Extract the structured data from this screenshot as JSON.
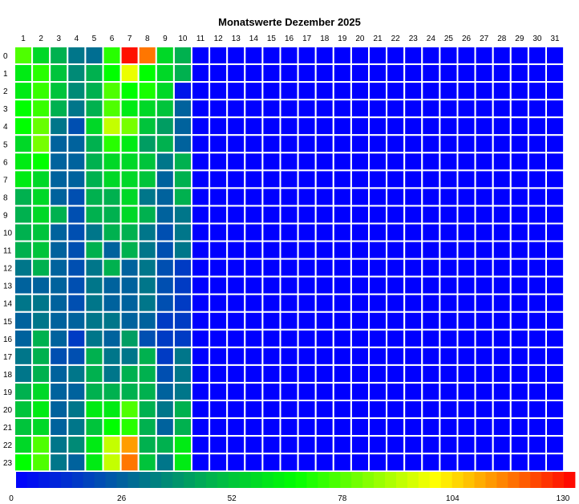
{
  "chart_data": {
    "type": "heatmap",
    "title": "Monatswerte Dezember 2025",
    "x_categories": [
      "1",
      "2",
      "3",
      "4",
      "5",
      "6",
      "7",
      "8",
      "9",
      "10",
      "11",
      "12",
      "13",
      "14",
      "15",
      "16",
      "17",
      "18",
      "19",
      "20",
      "21",
      "22",
      "23",
      "24",
      "25",
      "26",
      "27",
      "28",
      "29",
      "30",
      "31"
    ],
    "y_categories": [
      "0",
      "1",
      "2",
      "3",
      "4",
      "5",
      "6",
      "7",
      "8",
      "9",
      "10",
      "11",
      "12",
      "13",
      "14",
      "15",
      "16",
      "17",
      "18",
      "19",
      "20",
      "21",
      "22",
      "23"
    ],
    "value_range": [
      0,
      130
    ],
    "colorbar_ticks": [
      "0",
      "26",
      "52",
      "78",
      "104",
      "130"
    ],
    "grid": true,
    "colors": {
      "scale": [
        "#0000ff",
        "#008080",
        "#00ff00",
        "#ffff00",
        "#ff0000"
      ],
      "cell_border": "#ffffff"
    },
    "values_first_10_days": [
      [
        75,
        55,
        45,
        30,
        28,
        70,
        128,
        115,
        55,
        45
      ],
      [
        60,
        70,
        50,
        35,
        45,
        65,
        95,
        65,
        55,
        45
      ],
      [
        60,
        72,
        50,
        35,
        45,
        75,
        65,
        68,
        55,
        5
      ],
      [
        65,
        72,
        45,
        30,
        45,
        75,
        60,
        55,
        50,
        25
      ],
      [
        65,
        78,
        30,
        20,
        55,
        90,
        80,
        50,
        40,
        25
      ],
      [
        55,
        80,
        25,
        25,
        45,
        70,
        60,
        40,
        45,
        25
      ],
      [
        60,
        65,
        25,
        25,
        45,
        55,
        55,
        50,
        30,
        45
      ],
      [
        60,
        55,
        25,
        25,
        45,
        55,
        55,
        50,
        25,
        45
      ],
      [
        45,
        55,
        25,
        20,
        45,
        45,
        55,
        30,
        25,
        45
      ],
      [
        45,
        55,
        45,
        20,
        45,
        45,
        55,
        45,
        25,
        30
      ],
      [
        45,
        50,
        25,
        20,
        30,
        45,
        45,
        30,
        20,
        30
      ],
      [
        45,
        50,
        25,
        20,
        45,
        25,
        45,
        30,
        20,
        30
      ],
      [
        30,
        45,
        25,
        20,
        30,
        45,
        25,
        30,
        20,
        15
      ],
      [
        25,
        25,
        25,
        20,
        30,
        25,
        25,
        30,
        20,
        15
      ],
      [
        30,
        30,
        25,
        20,
        30,
        25,
        25,
        30,
        20,
        15
      ],
      [
        25,
        30,
        25,
        25,
        30,
        30,
        25,
        25,
        15,
        15
      ],
      [
        25,
        45,
        25,
        15,
        30,
        25,
        40,
        20,
        15,
        15
      ],
      [
        30,
        45,
        20,
        20,
        45,
        30,
        30,
        45,
        15,
        30
      ],
      [
        30,
        45,
        25,
        30,
        45,
        30,
        45,
        45,
        20,
        30
      ],
      [
        45,
        55,
        25,
        25,
        45,
        45,
        45,
        45,
        25,
        30
      ],
      [
        50,
        60,
        25,
        30,
        60,
        60,
        75,
        45,
        30,
        45
      ],
      [
        50,
        55,
        25,
        30,
        50,
        65,
        70,
        45,
        25,
        45
      ],
      [
        55,
        75,
        30,
        35,
        60,
        90,
        110,
        45,
        45,
        60
      ],
      [
        65,
        75,
        30,
        25,
        60,
        90,
        115,
        50,
        30,
        60
      ]
    ],
    "empty_day_value": 0
  }
}
